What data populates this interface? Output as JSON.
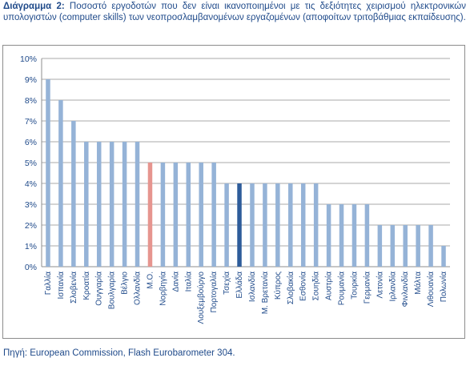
{
  "caption": {
    "label": "Διάγραμμα 2",
    "separator": ":",
    "text": " Ποσοστό εργοδοτών που δεν είναι ικανοποιημένοι με τις δεξιότητες χειρισμού ηλεκτρονικών υπολογιστών (computer skills) των νεοπροσλαμβανομένων εργαζομένων (αποφοίτων τριτοβάθμιας εκπαίδευσης)."
  },
  "source": "Πηγή: European Commission, Flash Eurobarometer 304.",
  "chart_data": {
    "type": "bar",
    "title": "",
    "xlabel": "",
    "ylabel": "",
    "ylim": [
      0,
      10
    ],
    "y_tick_labels": [
      "0%",
      "1%",
      "2%",
      "3%",
      "4%",
      "5%",
      "6%",
      "7%",
      "8%",
      "9%",
      "10%"
    ],
    "grid": true,
    "legend": "none",
    "categories": [
      "Γαλλία",
      "Ισπανία",
      "Σλοβενία",
      "Κροατία",
      "Ουγγαρία",
      "Βουλγαρία",
      "Βέλγιο",
      "Ολλανδία",
      "Μ.Ο.",
      "Νορβηγία",
      "Δανία",
      "Ιταλία",
      "Λουξεμβούργο",
      "Πορτογαλία",
      "Τσεχία",
      "Ελλάδα",
      "Ισλανδία",
      "Μ. Βρετανία",
      "Κύπρος",
      "Σλοβακία",
      "Εσθονία",
      "Σουηδία",
      "Αυστρία",
      "Ρουμανία",
      "Τουρκία",
      "Γερμανία",
      "Λετονία",
      "Ιρλανδία",
      "Φινλανδία",
      "Μάλτα",
      "Λιθουανία",
      "Πολωνία"
    ],
    "values": [
      9,
      8,
      7,
      6,
      6,
      6,
      6,
      6,
      5,
      5,
      5,
      5,
      5,
      5,
      4,
      4,
      4,
      4,
      4,
      4,
      4,
      4,
      3,
      3,
      3,
      3,
      2,
      2,
      2,
      2,
      2,
      1
    ],
    "colors": {
      "default": "#95b3d7",
      "average": "#e6958f",
      "highlight": "#2e5c9a",
      "grid": "#8c8c8c",
      "text": "#1f4a8a"
    },
    "special_bars": {
      "average": "Μ.Ο.",
      "highlight": "Ελλάδα"
    }
  }
}
